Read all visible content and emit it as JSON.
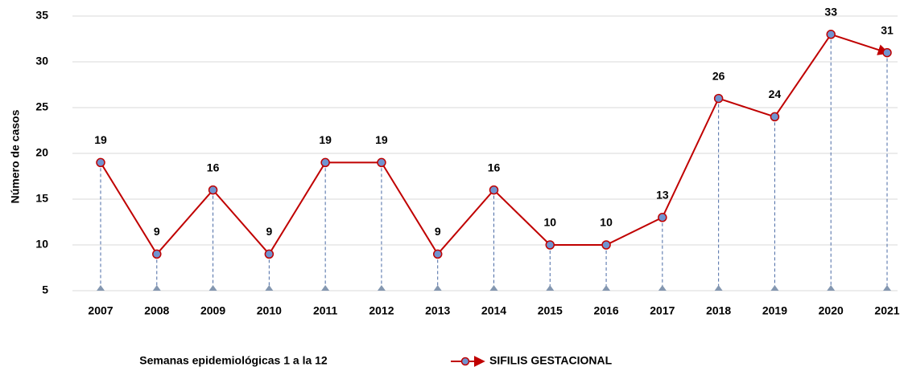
{
  "chart_data": {
    "type": "line",
    "y_label": "Número de casos",
    "x_label": "Semanas epidemiológicas 1 a la 12",
    "categories": [
      "2007",
      "2008",
      "2009",
      "2010",
      "2011",
      "2012",
      "2013",
      "2014",
      "2015",
      "2016",
      "2017",
      "2018",
      "2019",
      "2020",
      "2021"
    ],
    "series": [
      {
        "name": "SIFILIS GESTACIONAL",
        "color": "#c00000",
        "marker_color": "#7094d0",
        "values": [
          19,
          9,
          16,
          9,
          19,
          19,
          9,
          16,
          10,
          10,
          13,
          26,
          24,
          33,
          31
        ]
      }
    ],
    "ylim": [
      5,
      35
    ],
    "yticks": [
      5,
      10,
      15,
      20,
      25,
      30,
      35
    ],
    "grid": true
  }
}
